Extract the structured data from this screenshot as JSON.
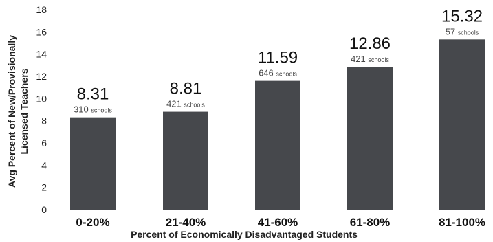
{
  "chart_data": {
    "type": "bar",
    "categories": [
      "0-20%",
      "21-40%",
      "41-60%",
      "61-80%",
      "81-100%"
    ],
    "values": [
      8.31,
      8.81,
      11.59,
      12.86,
      15.32
    ],
    "value_labels": [
      "8.31",
      "8.81",
      "11.59",
      "12.86",
      "15.32"
    ],
    "school_counts": [
      "310",
      "421",
      "646",
      "421",
      "57"
    ],
    "count_unit": "schools",
    "xlabel": "Percent of Economically  Disadvantaged Students",
    "ylabel_line1": "Avg Percent of New/Provisionally",
    "ylabel_line2": "Licensed Teachers",
    "ylim": [
      0,
      18
    ],
    "yticks": [
      0,
      2,
      4,
      6,
      8,
      10,
      12,
      14,
      16,
      18
    ],
    "grid": false,
    "bar_color": "#46484c"
  }
}
